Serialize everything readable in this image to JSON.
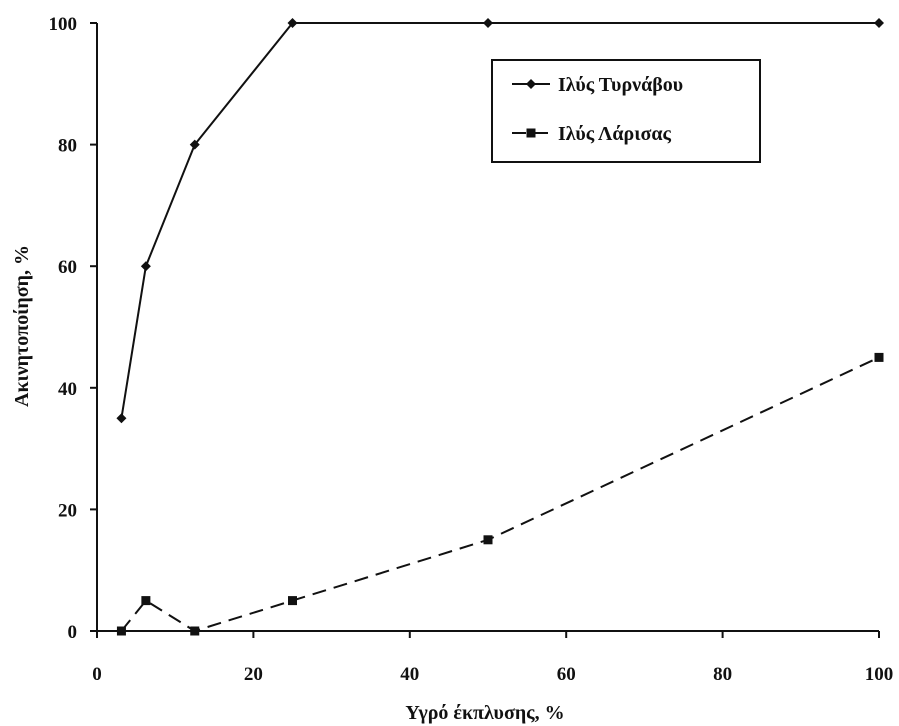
{
  "chart_data": {
    "type": "line",
    "xlabel": "Υγρό έκπλυσης, %",
    "ylabel": "Ακινητοποίηση, %",
    "xlim": [
      0,
      100
    ],
    "ylim": [
      0,
      100
    ],
    "xticks": [
      "0",
      "20",
      "40",
      "60",
      "80",
      "100"
    ],
    "yticks": [
      "0",
      "20",
      "40",
      "60",
      "80",
      "100"
    ],
    "grid": false,
    "legend_position": "top-right",
    "series": [
      {
        "name": "Ιλύς Τυρνάβου",
        "marker": "diamond",
        "line_style": "solid",
        "color": "#111111",
        "points": [
          [
            3.125,
            35
          ],
          [
            6.25,
            60
          ],
          [
            12.5,
            80
          ],
          [
            25,
            100
          ],
          [
            50,
            100
          ],
          [
            100,
            100
          ]
        ]
      },
      {
        "name": "Ιλύς Λάρισας",
        "marker": "square",
        "line_style": "dashed",
        "color": "#111111",
        "points": [
          [
            3.125,
            0
          ],
          [
            6.25,
            5
          ],
          [
            12.5,
            0
          ],
          [
            25,
            5
          ],
          [
            50,
            15
          ],
          [
            100,
            45
          ]
        ]
      }
    ]
  }
}
